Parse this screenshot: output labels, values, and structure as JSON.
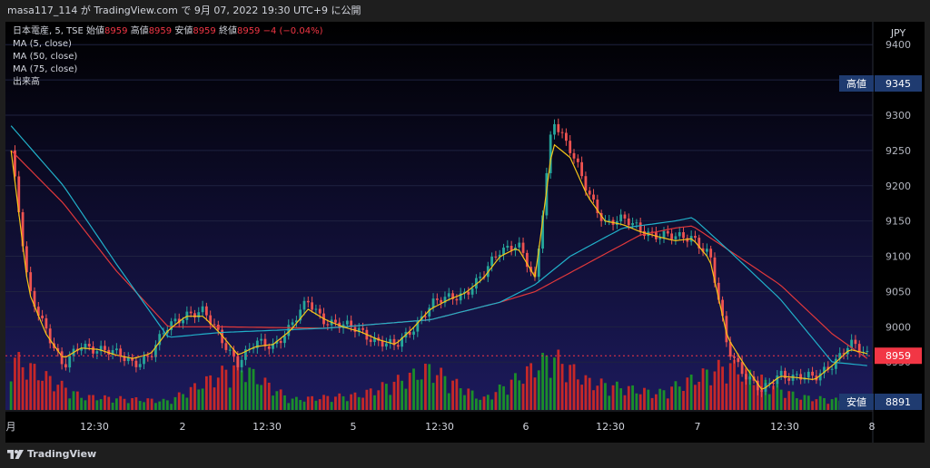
{
  "header": {
    "caption": "masa117_114 が TradingView.com で 9月 07, 2022 19:30 UTC+9 に公開"
  },
  "legend": {
    "symbol": "日本電産, 5, TSE",
    "open_label": "始値",
    "open_value": "8959",
    "high_label": "高値",
    "high_value": "8959",
    "low_label": "安値",
    "low_value": "8959",
    "close_label": "終値",
    "close_value": "8959",
    "change": "−4 (−0.04%)",
    "ma5": "MA (5, close)",
    "ma50": "MA (50, close)",
    "ma75": "MA (75, close)",
    "volume": "出来高"
  },
  "brand": "TradingView",
  "colors": {
    "up": "#26a69a",
    "down": "#ef5350",
    "vol_up": "#1b8f2a",
    "vol_down": "#c62828",
    "ma5": "#f5c518",
    "ma50": "#21b0c9",
    "ma75": "#e0383b",
    "label_bg": "#1f3b70",
    "price_label_bg": "#f23645"
  },
  "chart_data": {
    "type": "candlestick",
    "currency": "JPY",
    "y_ticks": [
      8950,
      9000,
      9050,
      9100,
      9150,
      9200,
      9250,
      9300,
      9350,
      9400
    ],
    "x_ticks": [
      "月",
      "12:30",
      "2",
      "12:30",
      "5",
      "12:30",
      "6",
      "12:30",
      "7",
      "12:30",
      "8"
    ],
    "high_marker": {
      "label": "高値",
      "value": 9345
    },
    "low_marker": {
      "label": "安値",
      "value": 8891
    },
    "last_price": 8959,
    "price_key_points": [
      [
        0,
        9250
      ],
      [
        1,
        9050
      ],
      [
        2,
        9000
      ],
      [
        3,
        8940
      ],
      [
        4,
        8975
      ],
      [
        5,
        8970
      ],
      [
        6,
        8960
      ],
      [
        7,
        8950
      ],
      [
        8,
        8960
      ],
      [
        9,
        9000
      ],
      [
        10,
        9020
      ],
      [
        11,
        9020
      ],
      [
        12,
        8985
      ],
      [
        13,
        8950
      ],
      [
        14,
        8975
      ],
      [
        15,
        8975
      ],
      [
        16,
        9000
      ],
      [
        17,
        9035
      ],
      [
        18,
        9010
      ],
      [
        19,
        9000
      ],
      [
        20,
        8995
      ],
      [
        21,
        8980
      ],
      [
        22,
        8970
      ],
      [
        23,
        9000
      ],
      [
        24,
        9030
      ],
      [
        25,
        9040
      ],
      [
        26,
        9050
      ],
      [
        27,
        9070
      ],
      [
        28,
        9110
      ],
      [
        29,
        9120
      ],
      [
        30,
        9060
      ],
      [
        31,
        9300
      ],
      [
        32,
        9250
      ],
      [
        33,
        9190
      ],
      [
        34,
        9150
      ],
      [
        35,
        9150
      ],
      [
        36,
        9140
      ],
      [
        37,
        9130
      ],
      [
        38,
        9125
      ],
      [
        39,
        9130
      ],
      [
        40,
        9100
      ],
      [
        41,
        8970
      ],
      [
        42,
        8935
      ],
      [
        43,
        8905
      ],
      [
        44,
        8935
      ],
      [
        45,
        8930
      ],
      [
        46,
        8925
      ],
      [
        47,
        8950
      ],
      [
        48,
        8975
      ],
      [
        49,
        8959
      ]
    ],
    "volume_key_points": [
      [
        0,
        70
      ],
      [
        4,
        18
      ],
      [
        9,
        12
      ],
      [
        13,
        60
      ],
      [
        16,
        14
      ],
      [
        20,
        20
      ],
      [
        24,
        55
      ],
      [
        27,
        14
      ],
      [
        31,
        72
      ],
      [
        33,
        38
      ],
      [
        37,
        22
      ],
      [
        41,
        60
      ],
      [
        45,
        18
      ],
      [
        49,
        10
      ]
    ],
    "ma5_key_points": [
      [
        0,
        9250
      ],
      [
        1,
        9050
      ],
      [
        2,
        8990
      ],
      [
        3,
        8955
      ],
      [
        4,
        8970
      ],
      [
        5,
        8968
      ],
      [
        6,
        8960
      ],
      [
        7,
        8955
      ],
      [
        8,
        8962
      ],
      [
        9,
        8995
      ],
      [
        10,
        9015
      ],
      [
        11,
        9015
      ],
      [
        12,
        8990
      ],
      [
        13,
        8960
      ],
      [
        14,
        8972
      ],
      [
        15,
        8975
      ],
      [
        16,
        8995
      ],
      [
        17,
        9025
      ],
      [
        18,
        9010
      ],
      [
        19,
        9000
      ],
      [
        20,
        8993
      ],
      [
        21,
        8982
      ],
      [
        22,
        8975
      ],
      [
        23,
        8998
      ],
      [
        24,
        9025
      ],
      [
        25,
        9038
      ],
      [
        26,
        9048
      ],
      [
        27,
        9068
      ],
      [
        28,
        9100
      ],
      [
        29,
        9112
      ],
      [
        30,
        9070
      ],
      [
        31,
        9260
      ],
      [
        32,
        9240
      ],
      [
        33,
        9185
      ],
      [
        34,
        9150
      ],
      [
        35,
        9145
      ],
      [
        36,
        9135
      ],
      [
        37,
        9128
      ],
      [
        38,
        9122
      ],
      [
        39,
        9125
      ],
      [
        40,
        9095
      ],
      [
        41,
        8985
      ],
      [
        42,
        8945
      ],
      [
        43,
        8910
      ],
      [
        44,
        8930
      ],
      [
        45,
        8928
      ],
      [
        46,
        8925
      ],
      [
        47,
        8945
      ],
      [
        48,
        8968
      ],
      [
        49,
        8962
      ]
    ],
    "ma50_key_points": [
      [
        0,
        9285
      ],
      [
        3,
        9200
      ],
      [
        6,
        9090
      ],
      [
        9,
        8985
      ],
      [
        12,
        8992
      ],
      [
        18,
        8998
      ],
      [
        24,
        9010
      ],
      [
        28,
        9035
      ],
      [
        30,
        9060
      ],
      [
        32,
        9100
      ],
      [
        35,
        9140
      ],
      [
        38,
        9150
      ],
      [
        39,
        9155
      ],
      [
        41,
        9110
      ],
      [
        44,
        9040
      ],
      [
        47,
        8950
      ],
      [
        49,
        8945
      ]
    ],
    "ma75_key_points": [
      [
        0,
        9250
      ],
      [
        3,
        9175
      ],
      [
        6,
        9080
      ],
      [
        9,
        9000
      ],
      [
        12,
        9000
      ],
      [
        18,
        8998
      ],
      [
        24,
        9010
      ],
      [
        28,
        9035
      ],
      [
        30,
        9050
      ],
      [
        33,
        9090
      ],
      [
        36,
        9130
      ],
      [
        38,
        9140
      ],
      [
        39,
        9143
      ],
      [
        41,
        9110
      ],
      [
        44,
        9060
      ],
      [
        47,
        8990
      ],
      [
        49,
        8955
      ]
    ]
  }
}
